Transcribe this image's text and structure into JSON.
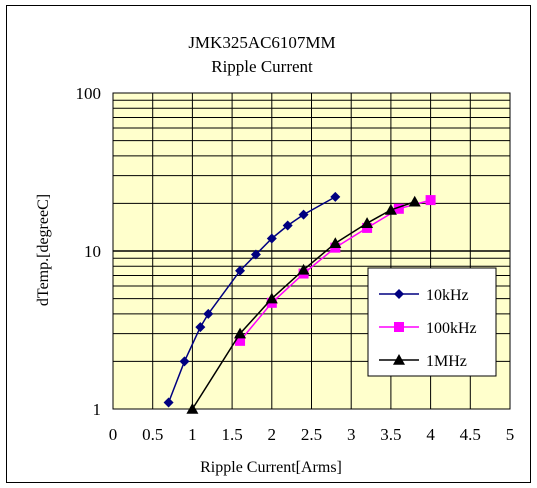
{
  "chart_data": {
    "type": "line",
    "title": "JMK325AC6107MM",
    "subtitle": "Ripple Current",
    "xlabel": "Ripple Current[Arms]",
    "ylabel": "dTemp.[degreeC]",
    "xlim": [
      0,
      5
    ],
    "ylim": [
      1,
      100
    ],
    "yscale": "log",
    "x_ticks": [
      "0",
      "0.5",
      "1",
      "1.5",
      "2",
      "2.5",
      "3",
      "3.5",
      "4",
      "4.5",
      "5"
    ],
    "y_ticks": [
      "1",
      "10",
      "100"
    ],
    "grid": "on",
    "plot_background": "#ffffcc",
    "legend_position": "right",
    "series": [
      {
        "name": "10kHz",
        "color": "#000080",
        "marker": "diamond",
        "points": [
          {
            "x": 0.7,
            "y": 1.1
          },
          {
            "x": 0.9,
            "y": 2.0
          },
          {
            "x": 1.1,
            "y": 3.3
          },
          {
            "x": 1.2,
            "y": 4.0
          },
          {
            "x": 1.6,
            "y": 7.5
          },
          {
            "x": 1.8,
            "y": 9.5
          },
          {
            "x": 2.0,
            "y": 12
          },
          {
            "x": 2.2,
            "y": 14.5
          },
          {
            "x": 2.4,
            "y": 17
          },
          {
            "x": 2.8,
            "y": 22
          }
        ]
      },
      {
        "name": "100kHz",
        "color": "#ff00ff",
        "marker": "square",
        "points": [
          {
            "x": 1.6,
            "y": 2.7
          },
          {
            "x": 2.0,
            "y": 4.7
          },
          {
            "x": 2.4,
            "y": 7.2
          },
          {
            "x": 2.8,
            "y": 10.5
          },
          {
            "x": 3.2,
            "y": 14
          },
          {
            "x": 3.6,
            "y": 18.5
          },
          {
            "x": 4.0,
            "y": 21
          }
        ]
      },
      {
        "name": "1MHz",
        "color": "#000000",
        "marker": "triangle",
        "points": [
          {
            "x": 1.0,
            "y": 1.0
          },
          {
            "x": 1.6,
            "y": 3.0
          },
          {
            "x": 2.0,
            "y": 5.0
          },
          {
            "x": 2.4,
            "y": 7.6
          },
          {
            "x": 2.8,
            "y": 11.2
          },
          {
            "x": 3.2,
            "y": 15
          },
          {
            "x": 3.5,
            "y": 18.2
          },
          {
            "x": 3.8,
            "y": 20.5
          }
        ]
      }
    ]
  }
}
